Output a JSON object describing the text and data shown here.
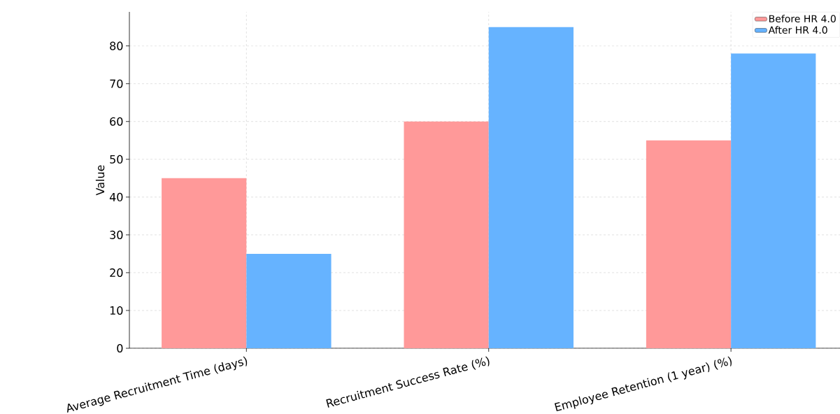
{
  "chart_data": {
    "type": "bar",
    "ylabel": "Value",
    "categories": [
      "Average Recruitment Time (days)",
      "Recruitment Success Rate (%)",
      "Employee Retention (1 year) (%)"
    ],
    "series": [
      {
        "name": "Before HR 4.0",
        "color": "#ff9999",
        "values": [
          45,
          60,
          55
        ]
      },
      {
        "name": "After HR 4.0",
        "color": "#66b3ff",
        "values": [
          25,
          85,
          78
        ]
      }
    ],
    "ylim": [
      0,
      89
    ],
    "yticks": [
      0,
      10,
      20,
      30,
      40,
      50,
      60,
      70,
      80
    ],
    "grid": true,
    "legend": "top right"
  }
}
